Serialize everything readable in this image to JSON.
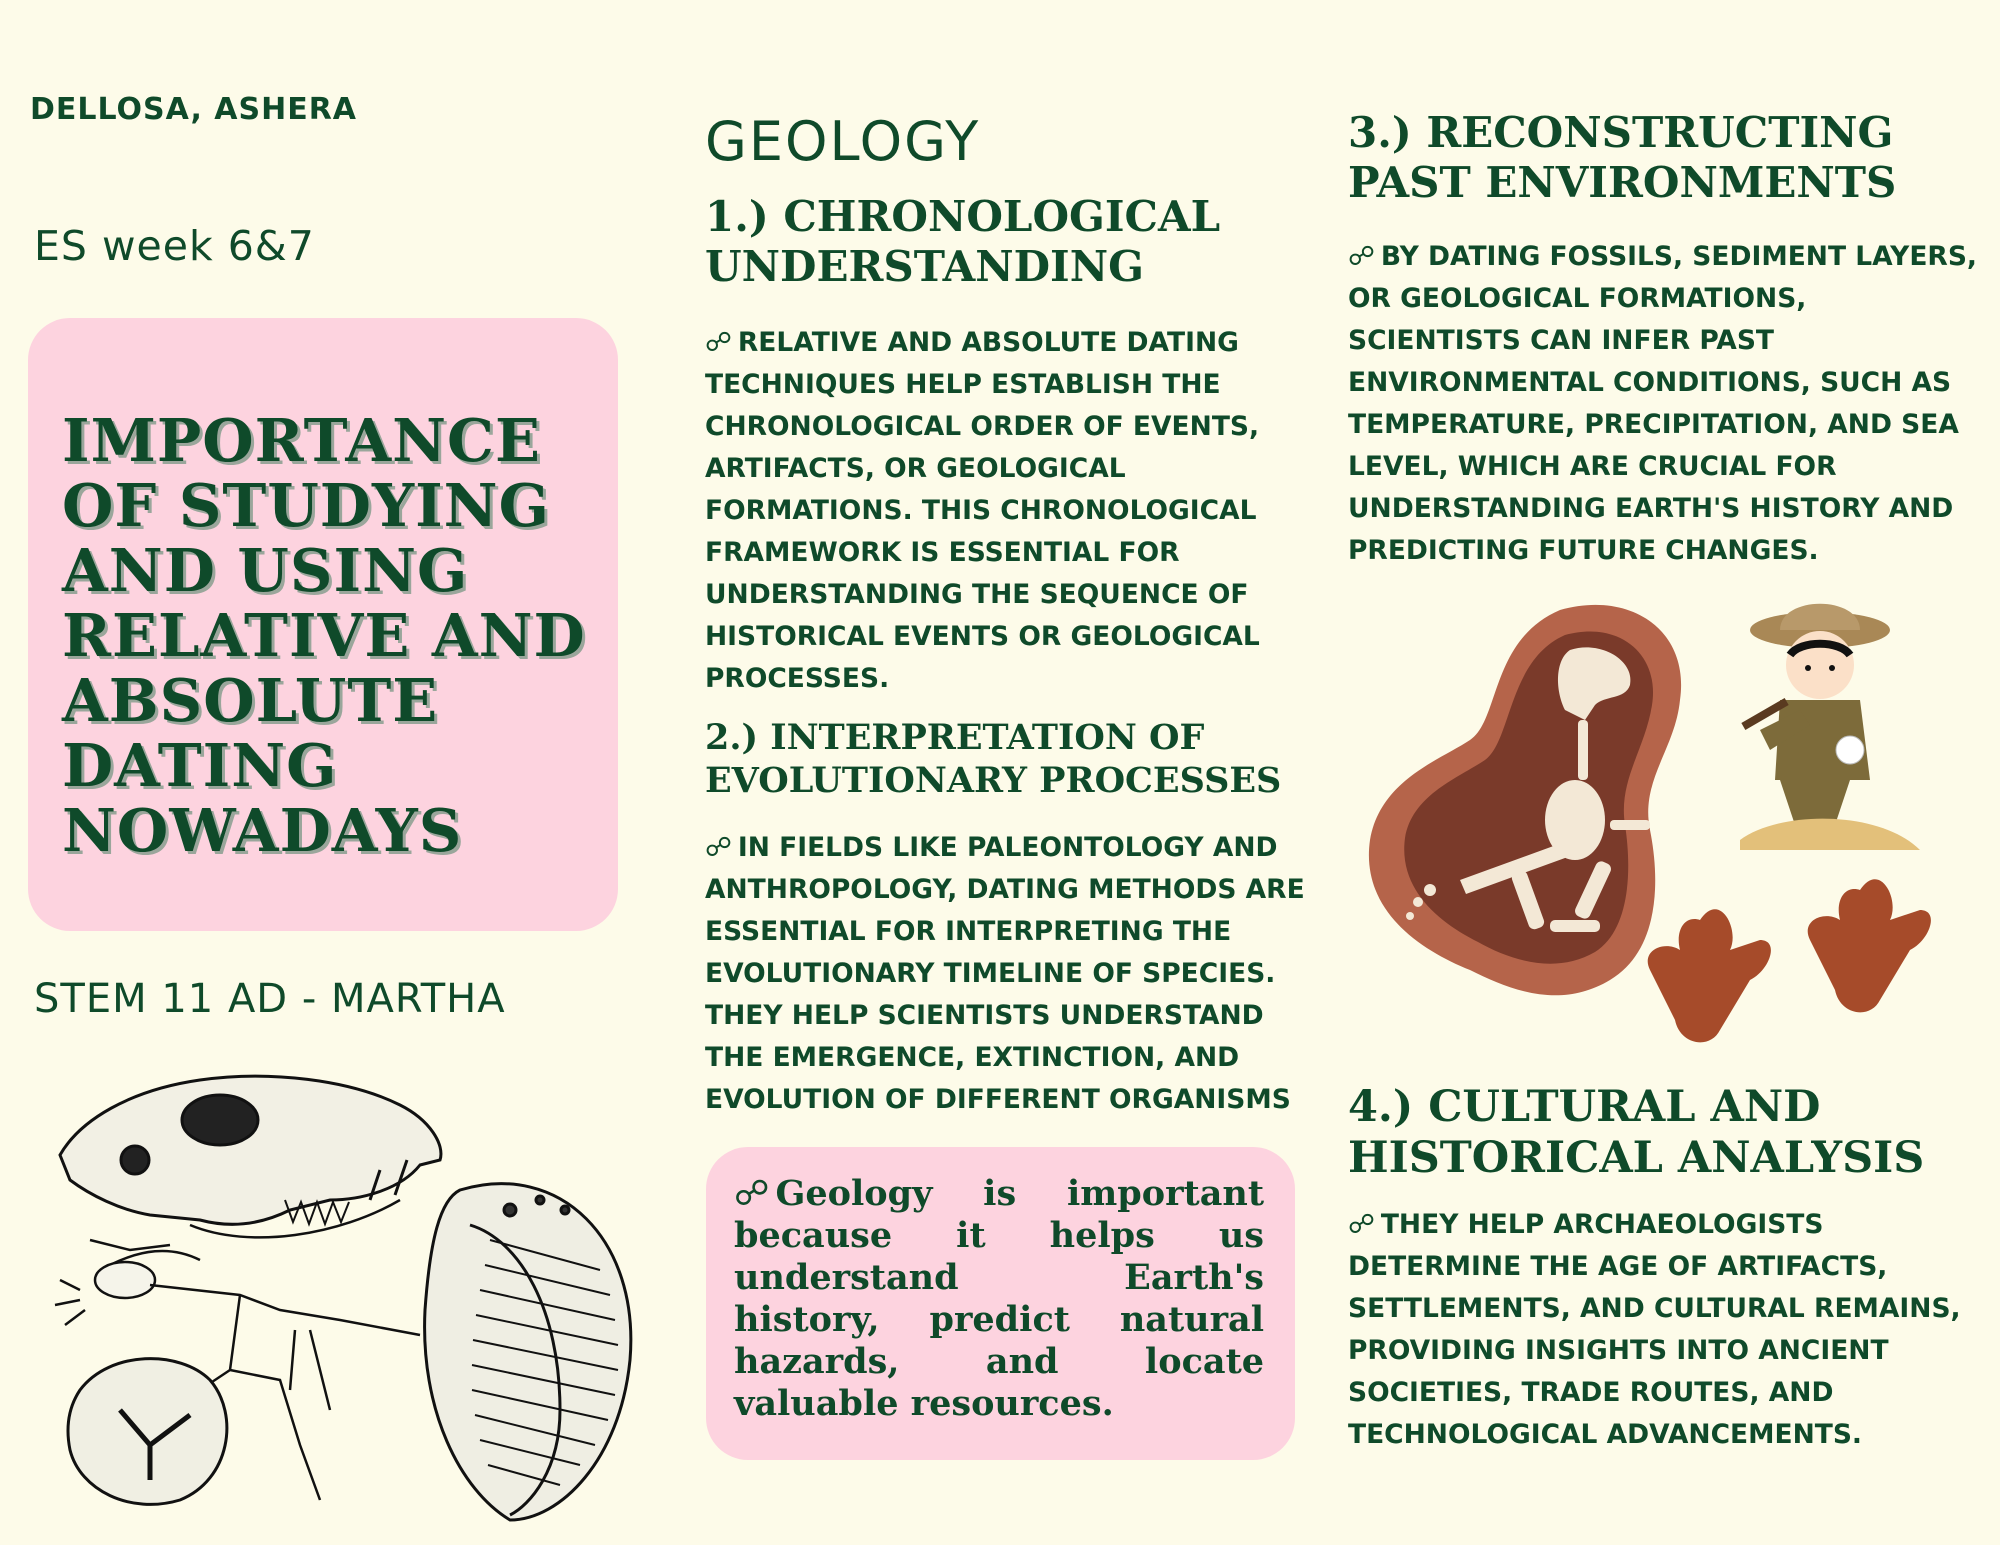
{
  "header": {
    "student_name": "DELLOSA, ASHERA",
    "subject_week": "ES week 6&7",
    "section": "STEM 11 AD - MARTHA"
  },
  "main_title": "IMPORTANCE OF STUDYING AND USING RELATIVE AND ABSOLUTE DATING NOWADAYS",
  "field_title": "GEOLOGY",
  "sections": [
    {
      "heading": "1.) CHRONOLOGICAL UNDERSTANDING",
      "body": "RELATIVE AND ABSOLUTE DATING TECHNIQUES HELP ESTABLISH THE CHRONOLOGICAL ORDER OF EVENTS, ARTIFACTS, OR GEOLOGICAL FORMATIONS. THIS CHRONOLOGICAL FRAMEWORK IS ESSENTIAL FOR UNDERSTANDING THE SEQUENCE OF HISTORICAL EVENTS OR GEOLOGICAL PROCESSES."
    },
    {
      "heading": "2.) INTERPRETATION OF EVOLUTIONARY PROCESSES",
      "body": "IN FIELDS LIKE PALEONTOLOGY AND ANTHROPOLOGY, DATING METHODS ARE ESSENTIAL FOR INTERPRETING THE EVOLUTIONARY TIMELINE OF SPECIES. THEY HELP SCIENTISTS UNDERSTAND THE EMERGENCE, EXTINCTION, AND EVOLUTION OF DIFFERENT ORGANISMS"
    },
    {
      "heading": "3.) RECONSTRUCTING PAST ENVIRONMENTS",
      "body": "BY DATING FOSSILS, SEDIMENT LAYERS, OR GEOLOGICAL FORMATIONS, SCIENTISTS CAN INFER PAST ENVIRONMENTAL CONDITIONS, SUCH AS TEMPERATURE, PRECIPITATION, AND SEA LEVEL, WHICH ARE CRUCIAL FOR UNDERSTANDING EARTH'S HISTORY AND PREDICTING FUTURE CHANGES."
    },
    {
      "heading": "4.) CULTURAL AND HISTORICAL ANALYSIS",
      "body": "THEY HELP ARCHAEOLOGISTS DETERMINE THE AGE OF ARTIFACTS, SETTLEMENTS, AND CULTURAL REMAINS, PROVIDING INSIGHTS INTO ANCIENT SOCIETIES, TRADE ROUTES, AND TECHNOLOGICAL ADVANCEMENTS."
    }
  ],
  "note": "Geology is important because it helps us understand Earth's history, predict natural hazards, and locate valuable resources.",
  "bullet_icon": "link-icon",
  "colors": {
    "background": "#fdfbe9",
    "text": "#0f4a2a",
    "pink": "#fdd3df",
    "fossil_brown": "#b5644a"
  }
}
